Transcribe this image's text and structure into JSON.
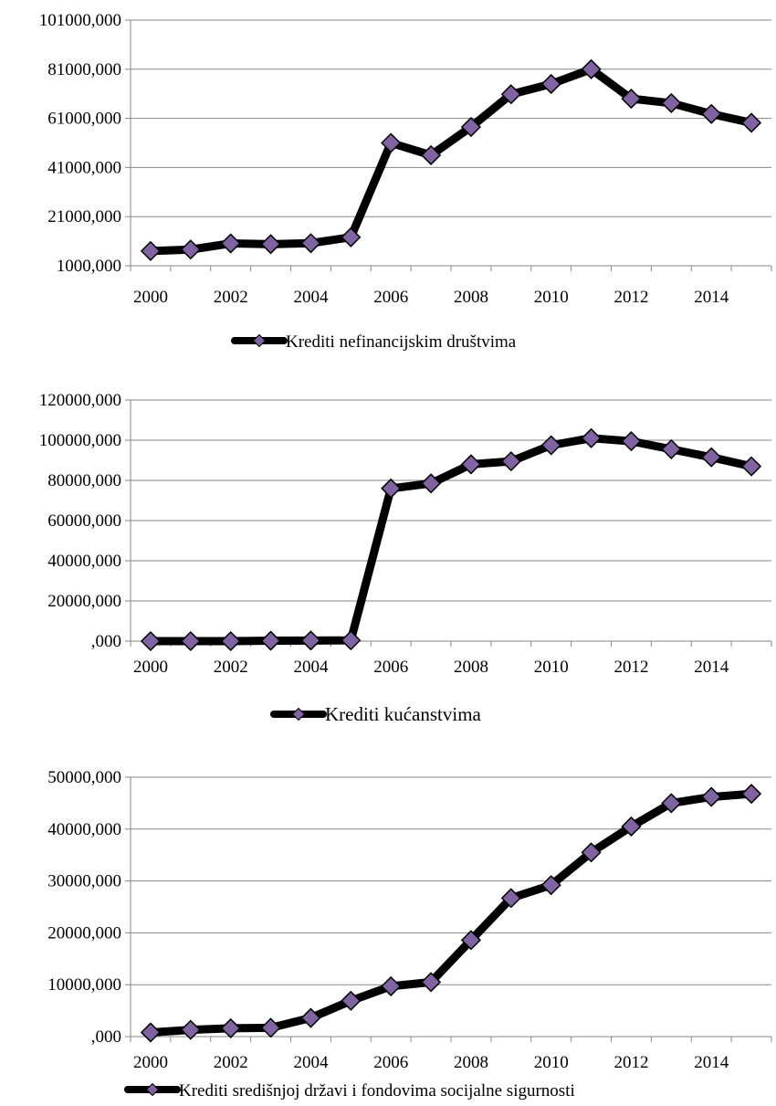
{
  "chart_data": [
    {
      "type": "line",
      "x": [
        2000,
        2001,
        2002,
        2003,
        2004,
        2005,
        2006,
        2007,
        2008,
        2009,
        2010,
        2011,
        2012,
        2013,
        2014,
        2015
      ],
      "x_tick_labels": [
        "2000",
        "2002",
        "2004",
        "2006",
        "2008",
        "2010",
        "2012",
        "2014"
      ],
      "y_tick_labels": [
        "101000,000",
        "81000,000",
        "61000,000",
        "41000,000",
        "21000,000",
        "1000,000"
      ],
      "ylim": [
        1000,
        101000
      ],
      "grid": true,
      "legend_position": "bottom",
      "series": [
        {
          "name": "Krediti nefinancijskim društvima",
          "values": [
            7000,
            7600,
            10100,
            9800,
            10200,
            12600,
            51000,
            46000,
            57500,
            70800,
            75000,
            81000,
            69000,
            67200,
            62800,
            59200
          ],
          "line_color": "#000000",
          "marker_color": "#8064a2"
        }
      ]
    },
    {
      "type": "line",
      "x": [
        2000,
        2001,
        2002,
        2003,
        2004,
        2005,
        2006,
        2007,
        2008,
        2009,
        2010,
        2011,
        2012,
        2013,
        2014,
        2015
      ],
      "x_tick_labels": [
        "2000",
        "2002",
        "2004",
        "2006",
        "2008",
        "2010",
        "2012",
        "2014"
      ],
      "y_tick_labels": [
        "120000,000",
        "100000,000",
        "80000,000",
        "60000,000",
        "40000,000",
        "20000,000",
        ",000"
      ],
      "ylim": [
        0,
        120000
      ],
      "grid": true,
      "legend_position": "bottom",
      "series": [
        {
          "name": "Krediti kućanstvima",
          "values": [
            0,
            0,
            0,
            200,
            300,
            400,
            76000,
            78500,
            88000,
            89500,
            97500,
            101000,
            99500,
            95500,
            91500,
            87000
          ],
          "line_color": "#000000",
          "marker_color": "#8064a2"
        }
      ]
    },
    {
      "type": "line",
      "x": [
        2000,
        2001,
        2002,
        2003,
        2004,
        2005,
        2006,
        2007,
        2008,
        2009,
        2010,
        2011,
        2012,
        2013,
        2014,
        2015
      ],
      "x_tick_labels": [
        "2000",
        "2002",
        "2004",
        "2006",
        "2008",
        "2010",
        "2012",
        "2014"
      ],
      "y_tick_labels": [
        "50000,000",
        "40000,000",
        "30000,000",
        "20000,000",
        "10000,000",
        ",000"
      ],
      "ylim": [
        0,
        50000
      ],
      "grid": true,
      "legend_position": "bottom",
      "series": [
        {
          "name": "Krediti središnjoj državi i fondovima socijalne sigurnosti",
          "values": [
            800,
            1300,
            1600,
            1700,
            3600,
            6900,
            9700,
            10500,
            18600,
            26700,
            29200,
            35500,
            40500,
            45000,
            46200,
            46800
          ],
          "line_color": "#000000",
          "marker_color": "#8064a2"
        }
      ]
    }
  ]
}
